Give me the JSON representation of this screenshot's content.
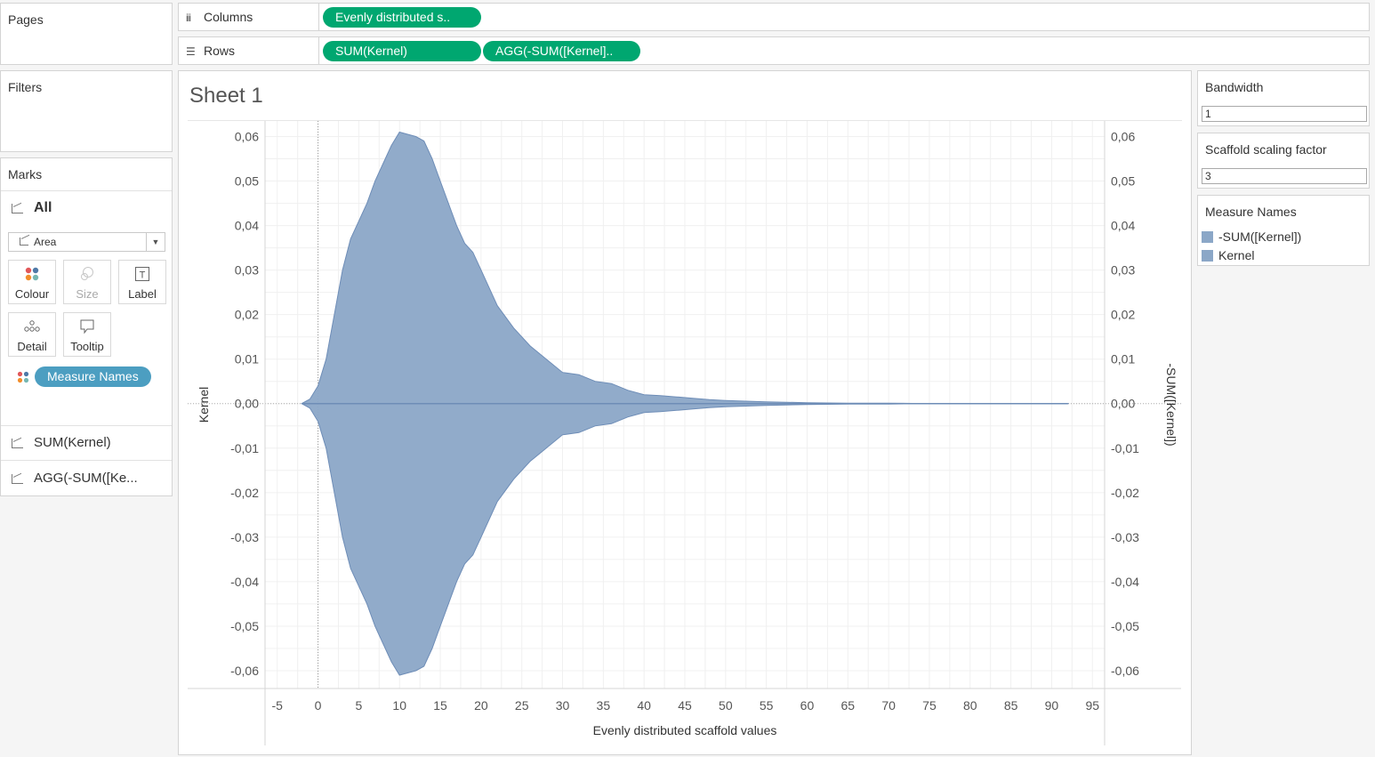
{
  "pages": {
    "title": "Pages"
  },
  "filters": {
    "title": "Filters"
  },
  "columns": {
    "label": "Columns",
    "icon": "columns-icon",
    "pills": [
      "Evenly distributed s.."
    ]
  },
  "rows": {
    "label": "Rows",
    "icon": "rows-icon",
    "pills": [
      "SUM(Kernel)",
      "AGG(-SUM([Kernel].."
    ]
  },
  "marks": {
    "title": "Marks",
    "all_label": "All",
    "mark_type": "Area",
    "buttons": {
      "colour": "Colour",
      "size": "Size",
      "label": "Label",
      "detail": "Detail",
      "tooltip": "Tooltip"
    },
    "colour_pill": "Measure Names",
    "measures": [
      "SUM(Kernel)",
      "AGG(-SUM([Ke..."
    ]
  },
  "sheet": {
    "title": "Sheet 1"
  },
  "parameters": [
    {
      "label": "Bandwidth",
      "value": "1"
    },
    {
      "label": "Scaffold scaling factor",
      "value": "3"
    }
  ],
  "legend": {
    "title": "Measure Names",
    "items": [
      "-SUM([Kernel])",
      "Kernel"
    ],
    "color": "#8ba7c7"
  },
  "colors": {
    "pill_green": "#00a770",
    "pill_blue": "#4c9ec1",
    "area_fill": "#8ba7c7",
    "area_stroke": "#6e8db7"
  },
  "chart_data": {
    "type": "area",
    "title": "Sheet 1",
    "xlabel": "Evenly distributed scaffold values",
    "ylabel_left": "Kernel",
    "ylabel_right": "-SUM([Kernel])",
    "xlim": [
      -6.5,
      96.5
    ],
    "ylim": [
      -0.064,
      0.0635
    ],
    "x_ticks": [
      -5,
      0,
      5,
      10,
      15,
      20,
      25,
      30,
      35,
      40,
      45,
      50,
      55,
      60,
      65,
      70,
      75,
      80,
      85,
      90,
      95
    ],
    "y_ticks": [
      0.06,
      0.05,
      0.04,
      0.03,
      0.02,
      0.01,
      0.0,
      -0.01,
      -0.02,
      -0.03,
      -0.04,
      -0.05,
      -0.06
    ],
    "y_tick_labels": [
      "0,06",
      "0,05",
      "0,04",
      "0,03",
      "0,02",
      "0,01",
      "0,00",
      "-0,01",
      "-0,02",
      "-0,03",
      "-0,04",
      "-0,05",
      "-0,06"
    ],
    "grid": true,
    "series": [
      {
        "name": "Kernel",
        "x": [
          -2,
          -1,
          0,
          1,
          2,
          3,
          4,
          5,
          6,
          7,
          8,
          9,
          10,
          11,
          12,
          13,
          14,
          15,
          16,
          17,
          18,
          19,
          20,
          22,
          24,
          26,
          28,
          30,
          32,
          34,
          36,
          38,
          40,
          42,
          44,
          46,
          48,
          50,
          55,
          60,
          65,
          70,
          75,
          80,
          85,
          90,
          92
        ],
        "y": [
          0.0,
          0.001,
          0.004,
          0.01,
          0.02,
          0.03,
          0.037,
          0.041,
          0.045,
          0.05,
          0.054,
          0.058,
          0.061,
          0.0605,
          0.06,
          0.059,
          0.055,
          0.05,
          0.045,
          0.04,
          0.036,
          0.034,
          0.03,
          0.022,
          0.017,
          0.013,
          0.01,
          0.007,
          0.0065,
          0.005,
          0.0045,
          0.003,
          0.002,
          0.0018,
          0.0015,
          0.0012,
          0.0009,
          0.0007,
          0.0004,
          0.0002,
          0.0001,
          0.0001,
          0.0,
          0.0,
          0.0,
          0.0,
          0.0
        ]
      },
      {
        "name": "-SUM([Kernel])",
        "x": [
          -2,
          -1,
          0,
          1,
          2,
          3,
          4,
          5,
          6,
          7,
          8,
          9,
          10,
          11,
          12,
          13,
          14,
          15,
          16,
          17,
          18,
          19,
          20,
          22,
          24,
          26,
          28,
          30,
          32,
          34,
          36,
          38,
          40,
          42,
          44,
          46,
          48,
          50,
          55,
          60,
          65,
          70,
          75,
          80,
          85,
          90,
          92
        ],
        "y": [
          0.0,
          -0.001,
          -0.004,
          -0.01,
          -0.02,
          -0.03,
          -0.037,
          -0.041,
          -0.045,
          -0.05,
          -0.054,
          -0.058,
          -0.061,
          -0.0605,
          -0.06,
          -0.059,
          -0.055,
          -0.05,
          -0.045,
          -0.04,
          -0.036,
          -0.034,
          -0.03,
          -0.022,
          -0.017,
          -0.013,
          -0.01,
          -0.007,
          -0.0065,
          -0.005,
          -0.0045,
          -0.003,
          -0.002,
          -0.0018,
          -0.0015,
          -0.0012,
          -0.0009,
          -0.0007,
          -0.0004,
          -0.0002,
          -0.0001,
          -0.0001,
          0.0,
          0.0,
          0.0,
          0.0,
          0.0
        ]
      }
    ]
  }
}
